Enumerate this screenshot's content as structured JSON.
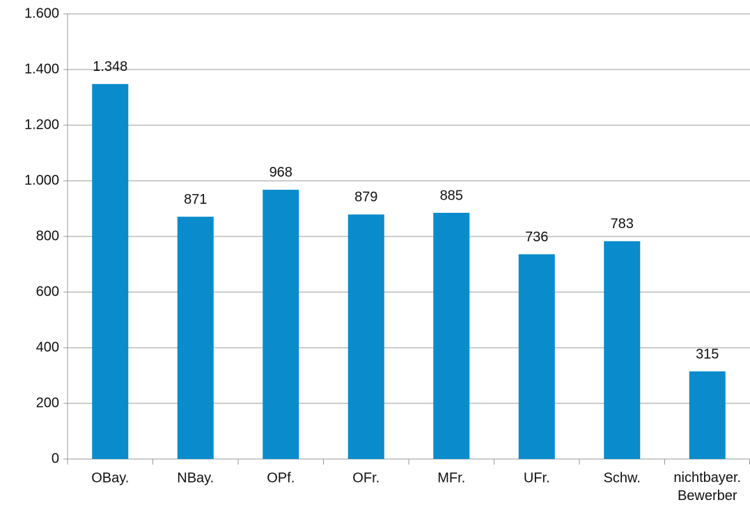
{
  "chart_data": {
    "type": "bar",
    "categories": [
      "OBay.",
      "NBay.",
      "OPf.",
      "OFr.",
      "MFr.",
      "UFr.",
      "Schw.",
      "nichtbayer. Bewerber"
    ],
    "values": [
      1348,
      871,
      968,
      879,
      885,
      736,
      783,
      315
    ],
    "value_labels": [
      "1.348",
      "871",
      "968",
      "879",
      "885",
      "736",
      "783",
      "315"
    ],
    "color": "#0a8ccc",
    "ylim": [
      0,
      1600
    ],
    "yticks": [
      0,
      200,
      400,
      600,
      800,
      {
        "value": 1000,
        "label": "1.000"
      },
      {
        "value": 1200,
        "label": "1.200"
      },
      {
        "value": 1400,
        "label": "1.400"
      },
      {
        "value": 1600,
        "label": "1.600"
      }
    ],
    "grid": true
  }
}
